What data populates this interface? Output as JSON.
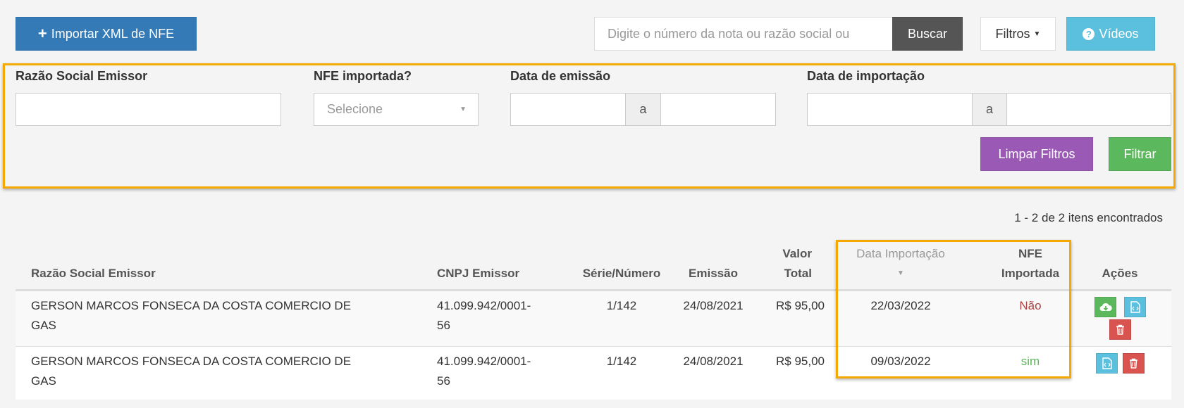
{
  "toolbar": {
    "import_label": "Importar XML de NFE",
    "search_placeholder": "Digite o número da nota ou razão social ou",
    "search_button": "Buscar",
    "filters_button": "Filtros",
    "videos_button": "Vídeos"
  },
  "filters": {
    "razao_label": "Razão Social Emissor",
    "razao_value": "",
    "nfe_label": "NFE importada?",
    "nfe_placeholder": "Selecione",
    "emissao_label": "Data de emissão",
    "importacao_label": "Data de importação",
    "range_sep": "a",
    "clear_button": "Limpar Filtros",
    "filter_button": "Filtrar"
  },
  "results": {
    "count_text": "1 - 2 de 2 itens encontrados"
  },
  "table": {
    "headers": {
      "razao": "Razão Social Emissor",
      "cnpj": "CNPJ Emissor",
      "serie": "Série/Número",
      "emissao": "Emissão",
      "valor_1": "Valor",
      "valor_2": "Total",
      "data_import": "Data Importação",
      "nfe_1": "NFE",
      "nfe_2": "Importada",
      "acoes": "Ações"
    },
    "rows": [
      {
        "razao_1": "GERSON MARCOS FONSECA DA COSTA COMERCIO DE",
        "razao_2": "GAS",
        "cnpj_1": "41.099.942/0001-",
        "cnpj_2": "56",
        "serie": "1/142",
        "emissao": "24/08/2021",
        "valor": "R$ 95,00",
        "data_import": "22/03/2022",
        "nfe": "Não",
        "nfe_color": "#a94442"
      },
      {
        "razao_1": "GERSON MARCOS FONSECA DA COSTA COMERCIO DE",
        "razao_2": "GAS",
        "cnpj_1": "41.099.942/0001-",
        "cnpj_2": "56",
        "serie": "1/142",
        "emissao": "24/08/2021",
        "valor": "R$ 95,00",
        "data_import": "09/03/2022",
        "nfe": "sim",
        "nfe_color": "#5cb85c"
      }
    ]
  },
  "colors": {
    "primary": "#337ab7",
    "dark": "#555555",
    "info": "#5bc0de",
    "purple": "#9b59b6",
    "success": "#5cb85c",
    "danger": "#d9534f",
    "highlight": "#f5a800"
  }
}
